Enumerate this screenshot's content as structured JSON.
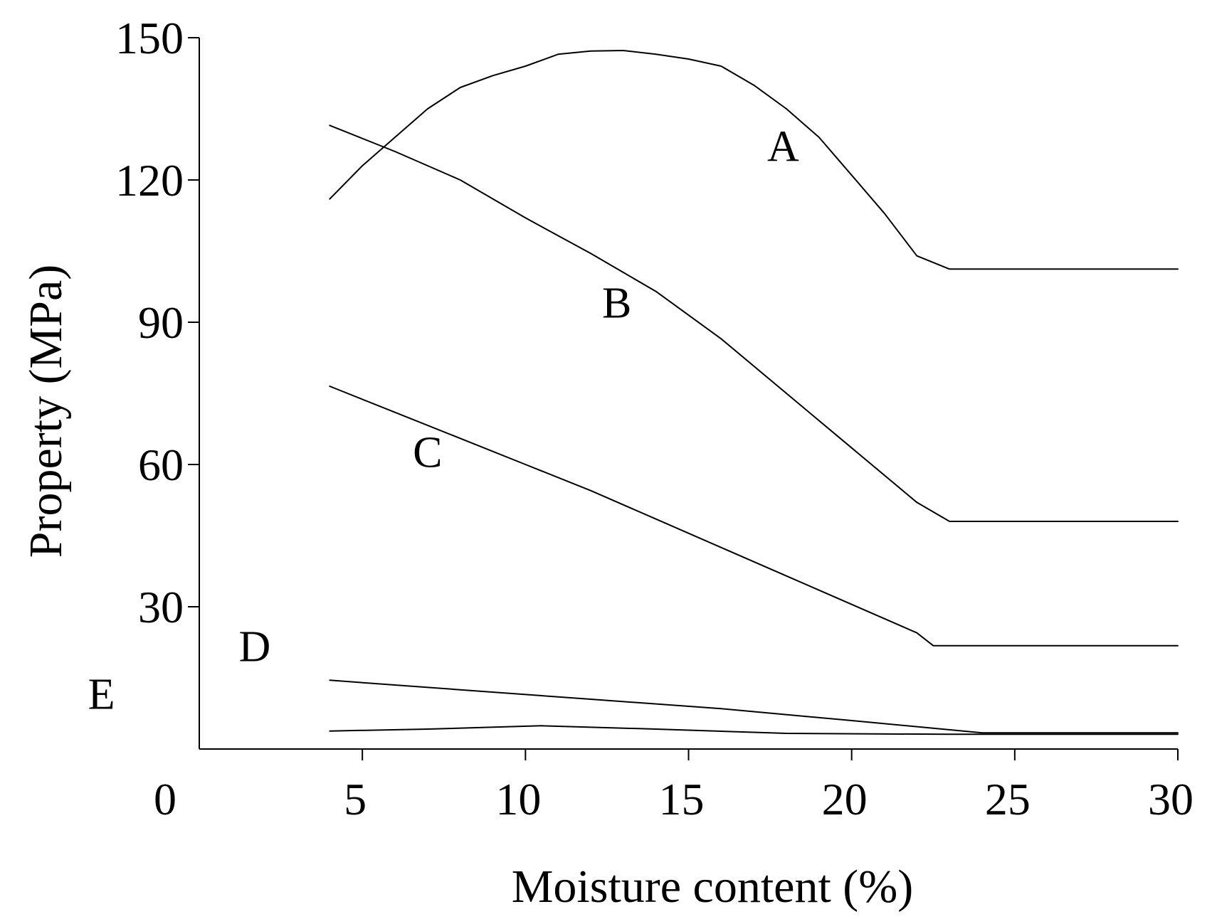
{
  "chart_data": {
    "type": "line",
    "title": "",
    "xlabel": "Moisture content (%)",
    "ylabel": "Property (MPa)",
    "xlim": [
      0,
      30
    ],
    "ylim": [
      0,
      150
    ],
    "x_ticks": [
      0,
      5,
      10,
      15,
      20,
      25,
      30
    ],
    "y_ticks": [
      30,
      60,
      90,
      120,
      150
    ],
    "x_tick_labels": [
      "0",
      "5",
      "10",
      "15",
      "20",
      "25",
      "30"
    ],
    "y_tick_labels": [
      "30",
      "60",
      "90",
      "120",
      "150"
    ],
    "grid": false,
    "legend": "none",
    "line_color": "#000000",
    "series": [
      {
        "name": "A",
        "x": [
          4,
          5,
          6,
          7,
          8,
          9,
          10,
          11,
          12,
          13,
          14,
          15,
          16,
          17,
          18,
          19,
          20,
          21,
          22,
          23,
          30
        ],
        "values": [
          116,
          123,
          129,
          135,
          139.5,
          142,
          144,
          146.5,
          147.2,
          147.3,
          146.5,
          145.5,
          144,
          140,
          135,
          129,
          121,
          113,
          104,
          101.2,
          101.2
        ]
      },
      {
        "name": "B",
        "x": [
          4,
          6,
          8,
          10,
          12,
          14,
          16,
          18,
          20,
          22,
          23,
          30
        ],
        "values": [
          131.5,
          126,
          120,
          112,
          104.5,
          96.5,
          86.5,
          75,
          63.5,
          52,
          48,
          48
        ]
      },
      {
        "name": "C",
        "x": [
          4,
          6,
          8,
          10,
          12,
          14,
          16,
          18,
          20,
          22,
          22.5,
          30
        ],
        "values": [
          76.5,
          71,
          65.5,
          60,
          54.5,
          48.5,
          42.5,
          36.5,
          30.5,
          24.5,
          21.8,
          21.8
        ]
      },
      {
        "name": "D",
        "x": [
          4,
          8,
          12,
          16,
          20,
          24,
          30
        ],
        "values": [
          14.5,
          12.5,
          10.5,
          8.5,
          6,
          3.4,
          3.4
        ]
      },
      {
        "name": "E",
        "x": [
          4,
          7,
          10.5,
          14,
          18,
          23,
          30
        ],
        "values": [
          3.8,
          4.2,
          4.9,
          4.2,
          3.3,
          3.1,
          3.1
        ]
      }
    ],
    "series_label_anchors": [
      {
        "name": "A",
        "x": 17.9,
        "y": 124
      },
      {
        "name": "B",
        "x": 12.8,
        "y": 91
      },
      {
        "name": "C",
        "x": 7.0,
        "y": 59.5
      },
      {
        "name": "D",
        "x": 1.7,
        "y": 18.5
      },
      {
        "name": "E",
        "x": -3.0,
        "y": 8.5
      }
    ]
  }
}
